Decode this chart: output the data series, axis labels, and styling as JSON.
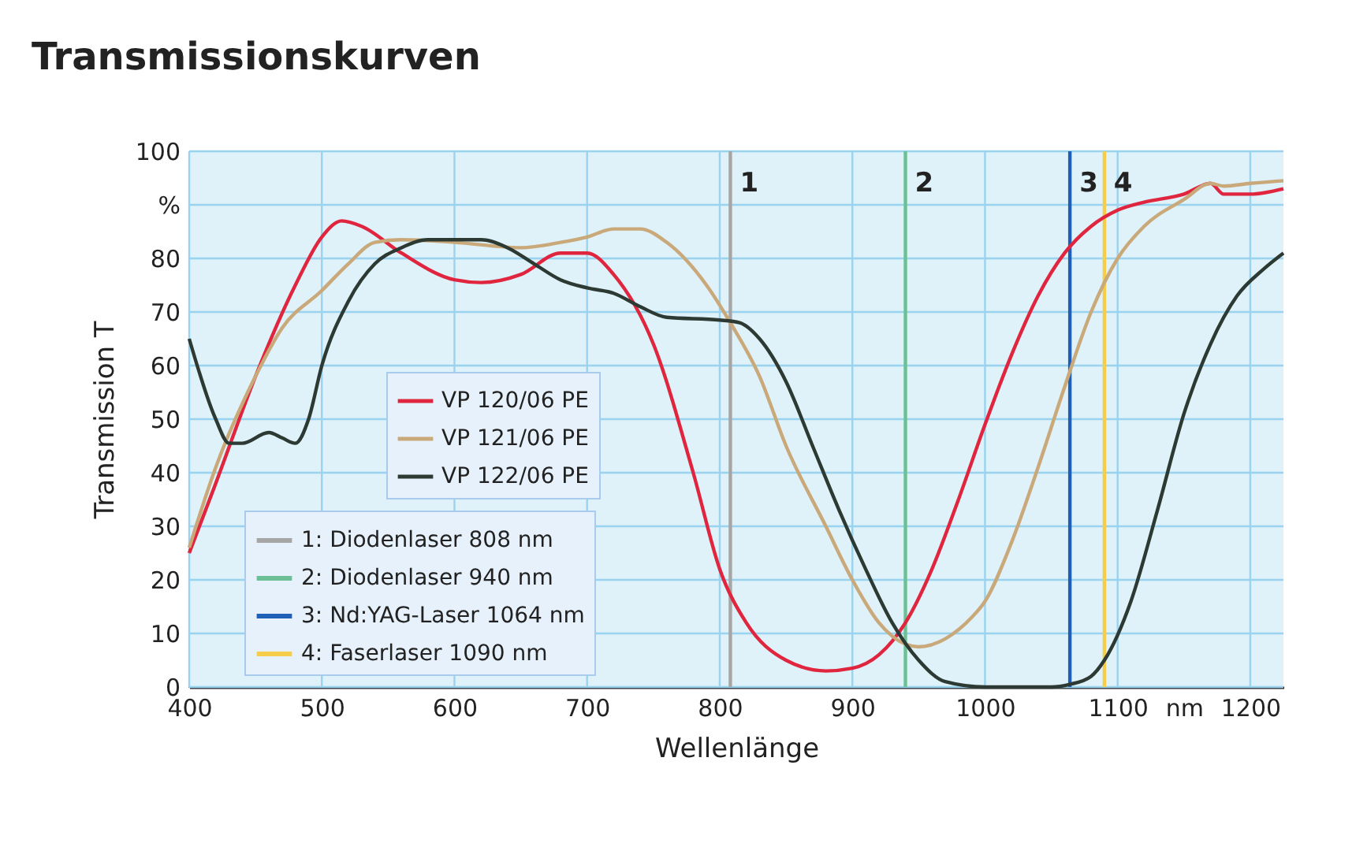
{
  "chart_data": {
    "type": "line",
    "title": "Transmissionskurven",
    "xlabel": "Wellenlänge",
    "ylabel": "Transmission T",
    "xlim": [
      400,
      1225
    ],
    "xticks": [
      400,
      500,
      600,
      700,
      800,
      900,
      1000,
      1100,
      {
        "value": 1150,
        "label": "nm"
      },
      1200
    ],
    "ylim": [
      0,
      100
    ],
    "yticks": [
      0,
      10,
      20,
      30,
      40,
      50,
      60,
      70,
      80,
      {
        "value": 90,
        "label": "%"
      },
      100
    ],
    "grid": true,
    "legend": "left",
    "series": [
      {
        "name": "VP 120/06 PE",
        "color": "#e0253f",
        "x": [
          400,
          420,
          450,
          480,
          500,
          515,
          530,
          560,
          600,
          620,
          650,
          680,
          700,
          720,
          750,
          780,
          800,
          820,
          850,
          880,
          900,
          920,
          940,
          960,
          980,
          1000,
          1020,
          1040,
          1060,
          1080,
          1100,
          1120,
          1150,
          1170,
          1180,
          1200,
          1225
        ],
        "values": [
          25,
          38,
          58,
          75,
          84,
          87,
          86,
          81,
          76,
          75.5,
          77,
          81,
          81,
          77,
          64,
          40,
          22,
          12,
          5,
          3,
          3.5,
          6,
          12,
          22,
          35,
          49,
          62,
          73,
          81,
          86,
          89,
          90.5,
          92,
          94,
          92,
          92,
          93
        ]
      },
      {
        "name": "VP 121/06 PE",
        "color": "#c9a97a",
        "x": [
          400,
          420,
          450,
          470,
          500,
          520,
          540,
          560,
          600,
          650,
          680,
          700,
          720,
          740,
          760,
          790,
          808,
          830,
          850,
          880,
          900,
          920,
          940,
          950,
          970,
          990,
          1000,
          1020,
          1040,
          1060,
          1080,
          1100,
          1120,
          1150,
          1170,
          1180,
          1200,
          1225
        ],
        "values": [
          26,
          41,
          58,
          67,
          74,
          79,
          83,
          83.5,
          83,
          82,
          83,
          84,
          85.5,
          85.5,
          83,
          75,
          68,
          58,
          45,
          30,
          20,
          12,
          8,
          7.5,
          9,
          13,
          16,
          27,
          41,
          56,
          70,
          80,
          86,
          91,
          94,
          93.5,
          94,
          94.5
        ]
      },
      {
        "name": "VP 122/06 PE",
        "color": "#2c3a33",
        "x": [
          400,
          420,
          430,
          440,
          460,
          470,
          480,
          490,
          500,
          520,
          540,
          560,
          580,
          600,
          620,
          640,
          660,
          680,
          700,
          720,
          740,
          760,
          800,
          815,
          830,
          850,
          870,
          890,
          910,
          930,
          950,
          970,
          1000,
          1050,
          1064,
          1080,
          1090,
          1110,
          1130,
          1150,
          1170,
          1190,
          1210,
          1225
        ],
        "values": [
          65,
          50,
          45.5,
          45.5,
          47.5,
          46.5,
          45.5,
          50,
          60,
          72,
          79,
          82,
          83.5,
          83.5,
          83.5,
          82,
          79,
          76,
          74.5,
          73.5,
          71,
          69,
          68.5,
          68,
          65,
          57,
          45,
          33,
          22,
          12,
          5,
          1,
          0,
          0,
          0.5,
          2,
          5,
          16,
          33,
          51,
          64,
          73,
          78,
          81
        ]
      }
    ],
    "ref_lines": [
      {
        "axis": "x",
        "value": 808,
        "color": "#a6a6a6"
      },
      {
        "axis": "x",
        "value": 940,
        "color": "#6dbf95"
      },
      {
        "axis": "x",
        "value": 1064,
        "color": "#1f5fb5"
      },
      {
        "axis": "x",
        "value": 1090,
        "color": "#f6cd4a"
      }
    ],
    "annotations": [
      "1: Diodenlaser 808 nm",
      "2: Diodenlaser 940 nm",
      "3: Nd:YAG-Laser 1064 nm",
      "4: Faserlaser 1090 nm",
      {
        "text": "1",
        "x": 808,
        "y": 94
      },
      {
        "text": "2",
        "x": 940,
        "y": 94
      },
      {
        "text": "3",
        "x": 1064,
        "y": 94
      },
      {
        "text": "4",
        "x": 1090,
        "y": 94
      }
    ]
  }
}
